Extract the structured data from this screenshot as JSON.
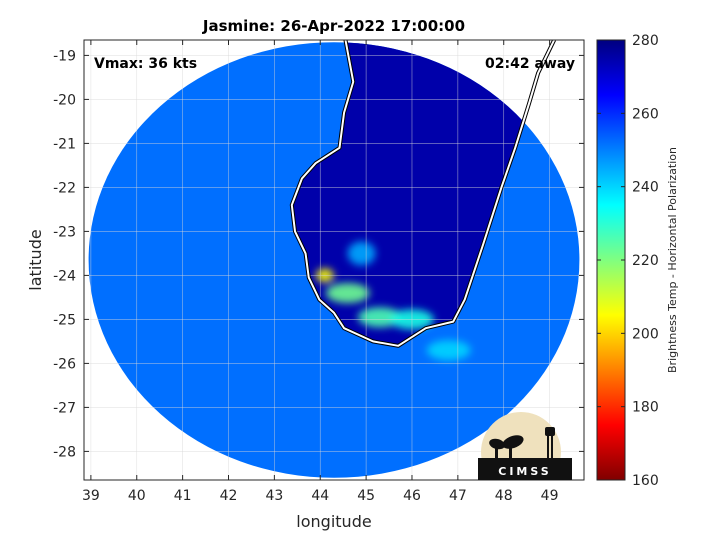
{
  "chart_data": {
    "type": "heatmap",
    "title": "Jasmine: 26-Apr-2022 17:00:00",
    "xlabel": "longitude",
    "ylabel": "latitude",
    "xlim": [
      38.85,
      49.75
    ],
    "ylim": [
      -28.65,
      -18.65
    ],
    "xticks": [
      39,
      40,
      41,
      42,
      43,
      44,
      45,
      46,
      47,
      48,
      49
    ],
    "yticks": [
      -19,
      -20,
      -21,
      -22,
      -23,
      -24,
      -25,
      -26,
      -27,
      -28
    ],
    "grid": true,
    "annotations": {
      "vmax": "Vmax: 36 kts",
      "time_away": "02:42 away"
    },
    "colorbar": {
      "label": "Brightness Temp - Horizontal Polarization",
      "min": 160,
      "max": 280,
      "ticks": [
        280,
        260,
        240,
        220,
        200,
        180,
        160
      ],
      "colormap": "jet",
      "colors": [
        "#800000",
        "#ff0000",
        "#ff8000",
        "#ffff00",
        "#80ff80",
        "#00ffff",
        "#0080ff",
        "#0000ff",
        "#000080"
      ]
    },
    "swath": {
      "center": [
        44.3,
        -23.65
      ],
      "radius_deg_x": 5.35,
      "radius_deg_y": 4.95,
      "background_value": 252
    },
    "land_region_value": 275,
    "features": [
      {
        "lon": 44.1,
        "lat": -24.0,
        "value": 205
      },
      {
        "lon": 44.6,
        "lat": -24.4,
        "value": 222
      },
      {
        "lon": 45.3,
        "lat": -24.95,
        "value": 226
      },
      {
        "lon": 46.0,
        "lat": -25.0,
        "value": 232
      },
      {
        "lon": 46.8,
        "lat": -25.7,
        "value": 240
      },
      {
        "lon": 44.9,
        "lat": -23.5,
        "value": 245
      }
    ],
    "coastline": [
      [
        44.55,
        -18.65
      ],
      [
        44.72,
        -19.6
      ],
      [
        44.52,
        -20.3
      ],
      [
        44.42,
        -21.1
      ],
      [
        43.9,
        -21.45
      ],
      [
        43.6,
        -21.8
      ],
      [
        43.38,
        -22.4
      ],
      [
        43.45,
        -23.0
      ],
      [
        43.68,
        -23.5
      ],
      [
        43.75,
        -24.05
      ],
      [
        43.98,
        -24.55
      ],
      [
        44.3,
        -24.85
      ],
      [
        44.52,
        -25.2
      ],
      [
        45.15,
        -25.5
      ],
      [
        45.7,
        -25.6
      ],
      [
        46.3,
        -25.2
      ],
      [
        46.9,
        -25.05
      ],
      [
        47.15,
        -24.55
      ],
      [
        47.55,
        -23.3
      ],
      [
        47.95,
        -22.0
      ],
      [
        48.25,
        -21.1
      ],
      [
        48.55,
        -20.1
      ],
      [
        48.75,
        -19.4
      ],
      [
        49.1,
        -18.65
      ]
    ],
    "logo_text": "CIMSS"
  }
}
